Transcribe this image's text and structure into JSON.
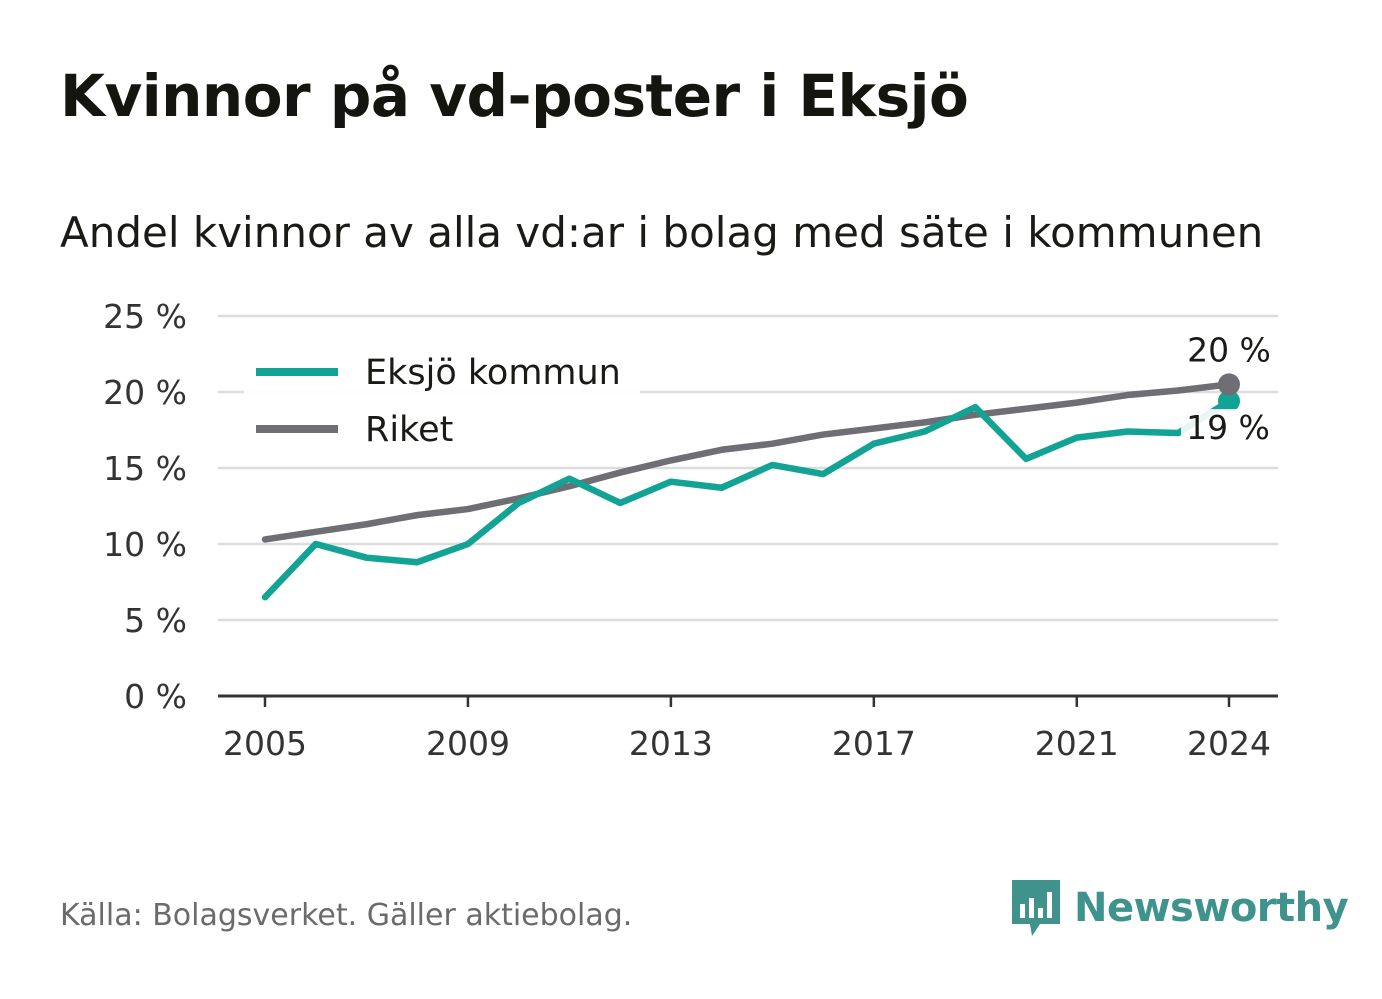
{
  "title": "Kvinnor på vd-poster i Eksjö",
  "subtitle": "Andel kvinnor av alla vd:ar i bolag med säte i kommunen",
  "source": "Källa: Bolagsverket. Gäller aktiebolag.",
  "brand": {
    "name": "Newsworthy",
    "color": "#3f938c",
    "icon": "newsworthy-logo-icon"
  },
  "colors": {
    "eksjo": "#12a394",
    "riket": "#6f6e75",
    "grid": "#dcdcdc",
    "axis": "#333333"
  },
  "chart_data": {
    "type": "line",
    "x": [
      2005,
      2006,
      2007,
      2008,
      2009,
      2010,
      2011,
      2012,
      2013,
      2014,
      2015,
      2016,
      2017,
      2018,
      2019,
      2020,
      2021,
      2022,
      2023,
      2024
    ],
    "xticks": [
      2005,
      2009,
      2013,
      2017,
      2021,
      2024
    ],
    "xtick_labels": [
      "2005",
      "2009",
      "2013",
      "2017",
      "2021",
      "2024"
    ],
    "yticks": [
      0,
      5,
      10,
      15,
      20,
      25
    ],
    "ytick_labels": [
      "0 %",
      "5 %",
      "10 %",
      "15 %",
      "20 %",
      "25 %"
    ],
    "ylim": [
      0,
      25
    ],
    "grid": true,
    "legend_position": "top-left",
    "series": [
      {
        "name": "Eksjö kommun",
        "color": "#12a394",
        "values": [
          6.5,
          10.0,
          9.1,
          8.8,
          10.0,
          12.7,
          14.3,
          12.7,
          14.1,
          13.7,
          15.2,
          14.6,
          16.6,
          17.4,
          19.0,
          15.6,
          17.0,
          17.4,
          17.3,
          19.4
        ],
        "end_label": "19 %"
      },
      {
        "name": "Riket",
        "color": "#6f6e75",
        "values": [
          10.3,
          10.8,
          11.3,
          11.9,
          12.3,
          13.0,
          13.8,
          14.7,
          15.5,
          16.2,
          16.6,
          17.2,
          17.6,
          18.0,
          18.5,
          18.9,
          19.3,
          19.8,
          20.1,
          20.5
        ],
        "end_label": "20 %"
      }
    ]
  }
}
